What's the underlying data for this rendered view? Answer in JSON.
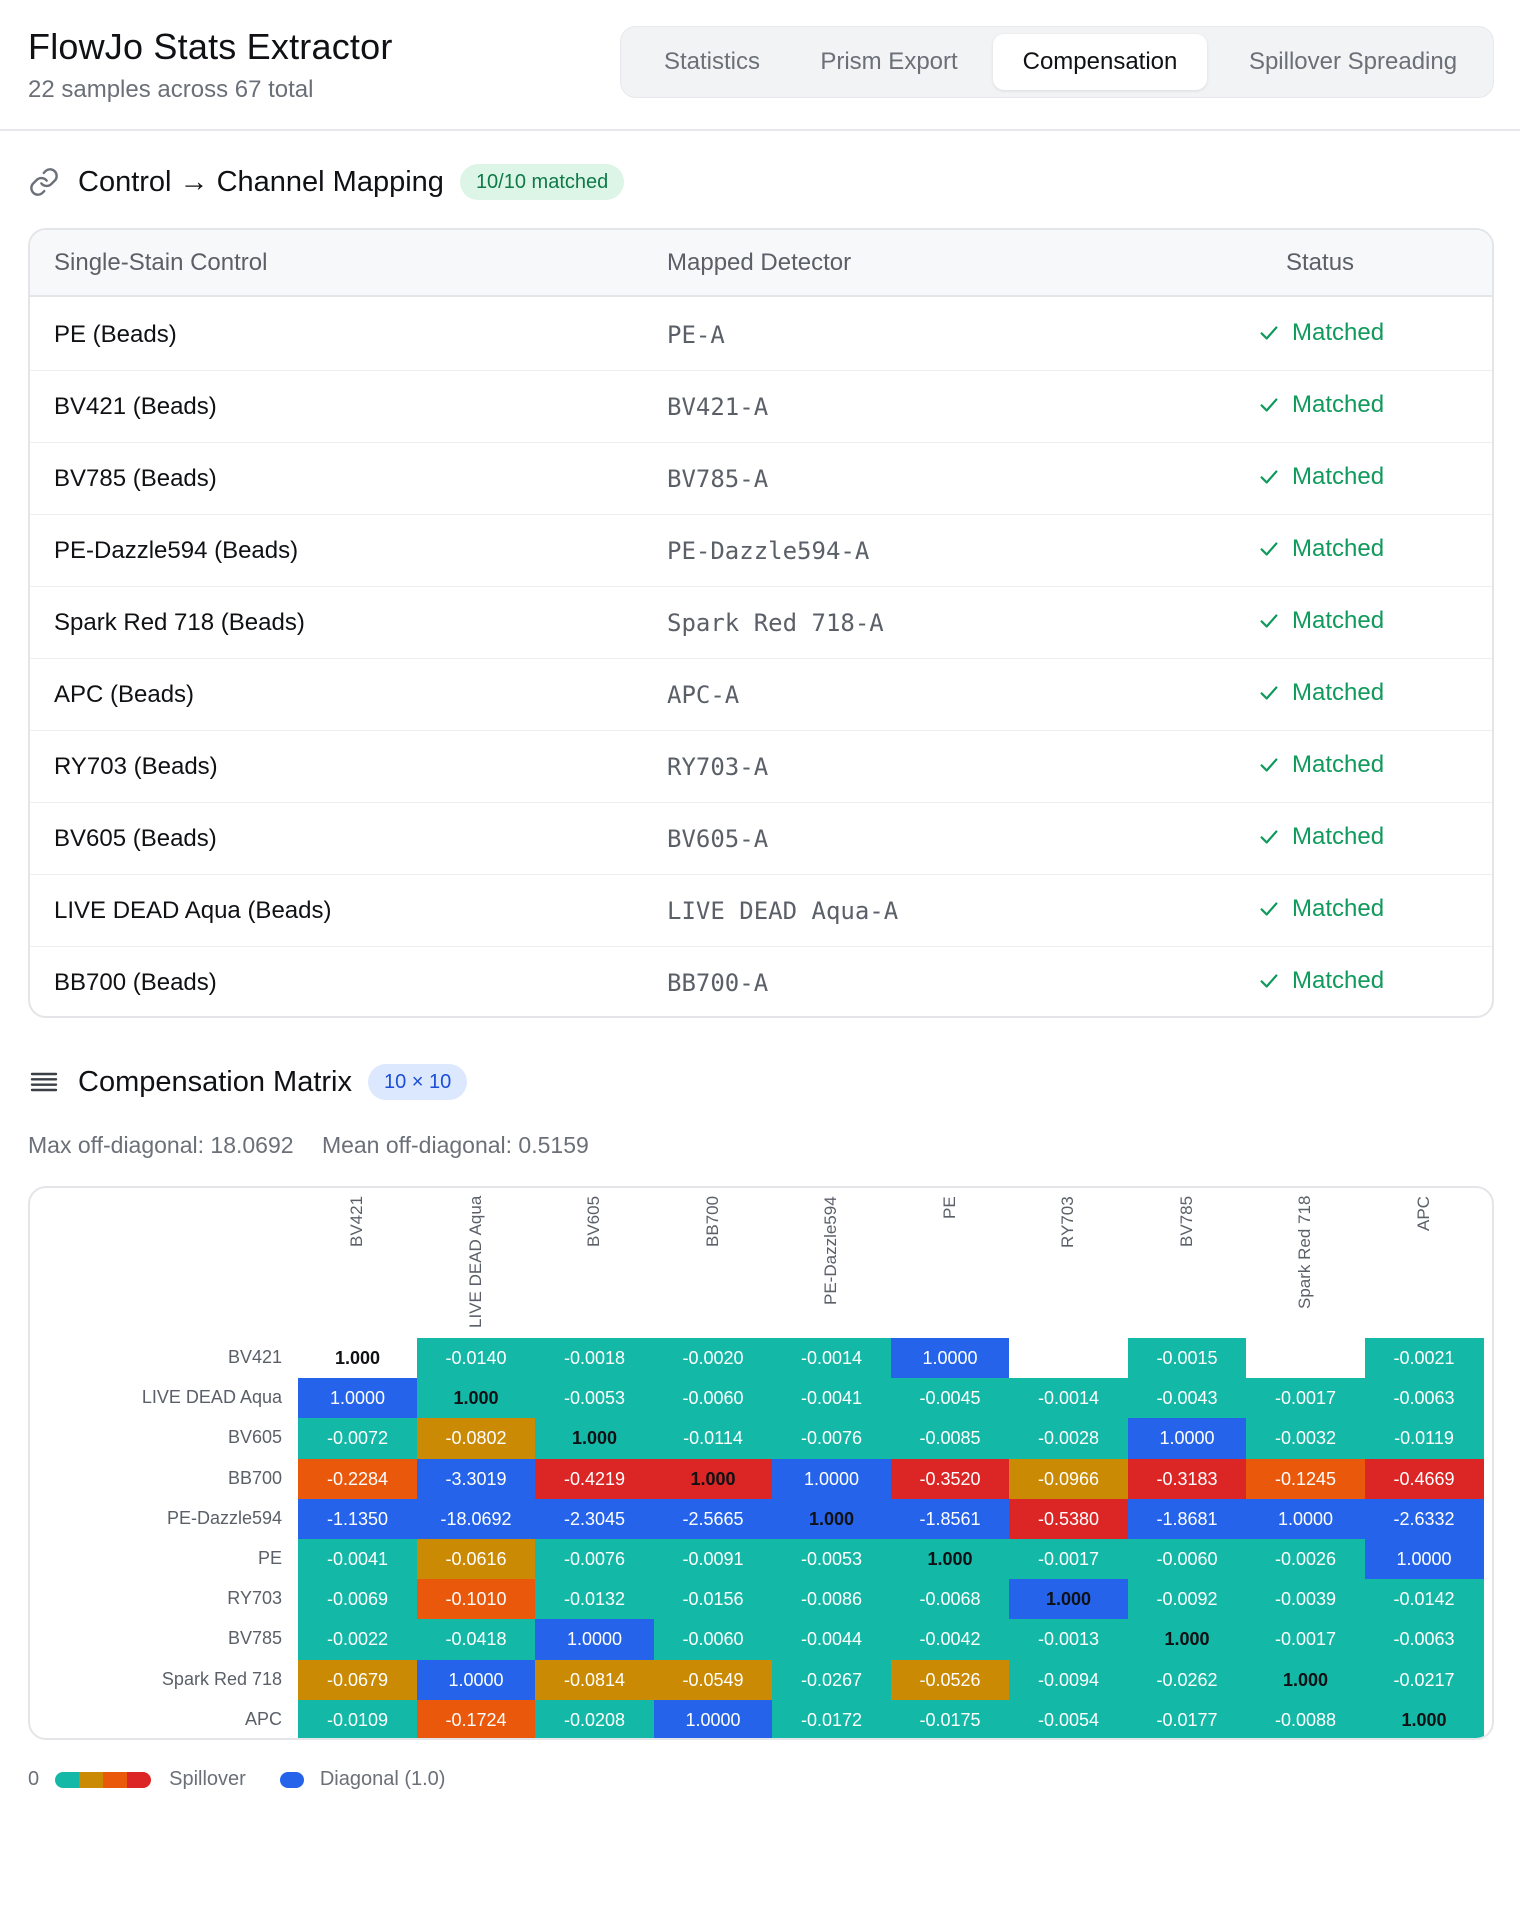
{
  "header": {
    "title": "FlowJo Stats Extractor",
    "subtitle": "22 samples across 67 total",
    "tabs": [
      {
        "label": "Statistics",
        "active": false
      },
      {
        "label": "Prism Export",
        "active": false
      },
      {
        "label": "Compensation",
        "active": true
      },
      {
        "label": "Spillover Spreading",
        "active": false
      }
    ]
  },
  "mapping": {
    "title": "Control → Channel Mapping",
    "badge": "10/10 matched",
    "columns": [
      "Single-Stain Control",
      "Mapped Detector",
      "Status"
    ],
    "rows": [
      {
        "control": "PE (Beads)",
        "detector": "PE-A",
        "status": "Matched"
      },
      {
        "control": "BV421 (Beads)",
        "detector": "BV421-A",
        "status": "Matched"
      },
      {
        "control": "BV785 (Beads)",
        "detector": "BV785-A",
        "status": "Matched"
      },
      {
        "control": "PE-Dazzle594 (Beads)",
        "detector": "PE-Dazzle594-A",
        "status": "Matched"
      },
      {
        "control": "Spark Red 718 (Beads)",
        "detector": "Spark Red 718-A",
        "status": "Matched"
      },
      {
        "control": "APC (Beads)",
        "detector": "APC-A",
        "status": "Matched"
      },
      {
        "control": "RY703 (Beads)",
        "detector": "RY703-A",
        "status": "Matched"
      },
      {
        "control": "BV605 (Beads)",
        "detector": "BV605-A",
        "status": "Matched"
      },
      {
        "control": "LIVE DEAD Aqua (Beads)",
        "detector": "LIVE DEAD Aqua-A",
        "status": "Matched"
      },
      {
        "control": "BB700 (Beads)",
        "detector": "BB700-A",
        "status": "Matched"
      }
    ]
  },
  "matrix": {
    "title": "Compensation Matrix",
    "badge": "10 × 10",
    "max_label": "Max off-diagonal: 18.0692",
    "mean_label": "Mean off-diagonal: 0.5159",
    "channels": [
      "BV421",
      "LIVE DEAD Aqua",
      "BV605",
      "BB700",
      "PE-Dazzle594",
      "PE",
      "RY703",
      "BV785",
      "Spark Red 718",
      "APC"
    ],
    "colors": {
      "t": "#14b8a6",
      "y": "#ca8a04",
      "o": "#ea580c",
      "r": "#dc2626",
      "b": "#2563eb",
      "w": "#ffffff"
    },
    "cells": [
      [
        [
          "1.000",
          "w"
        ],
        [
          "-0.0140",
          "t"
        ],
        [
          "-0.0018",
          "t"
        ],
        [
          "-0.0020",
          "t"
        ],
        [
          "-0.0014",
          "t"
        ],
        [
          "1.0000",
          "b"
        ],
        [
          "",
          "w"
        ],
        [
          "-0.0015",
          "t"
        ],
        [
          "",
          "w"
        ],
        [
          "-0.0021",
          "t"
        ]
      ],
      [
        [
          "1.0000",
          "b"
        ],
        [
          "1.000",
          "t"
        ],
        [
          "-0.0053",
          "t"
        ],
        [
          "-0.0060",
          "t"
        ],
        [
          "-0.0041",
          "t"
        ],
        [
          "-0.0045",
          "t"
        ],
        [
          "-0.0014",
          "t"
        ],
        [
          "-0.0043",
          "t"
        ],
        [
          "-0.0017",
          "t"
        ],
        [
          "-0.0063",
          "t"
        ]
      ],
      [
        [
          "-0.0072",
          "t"
        ],
        [
          "-0.0802",
          "y"
        ],
        [
          "1.000",
          "t"
        ],
        [
          "-0.0114",
          "t"
        ],
        [
          "-0.0076",
          "t"
        ],
        [
          "-0.0085",
          "t"
        ],
        [
          "-0.0028",
          "t"
        ],
        [
          "1.0000",
          "b"
        ],
        [
          "-0.0032",
          "t"
        ],
        [
          "-0.0119",
          "t"
        ]
      ],
      [
        [
          "-0.2284",
          "o"
        ],
        [
          "-3.3019",
          "b"
        ],
        [
          "-0.4219",
          "r"
        ],
        [
          "1.000",
          "r"
        ],
        [
          "1.0000",
          "b"
        ],
        [
          "-0.3520",
          "r"
        ],
        [
          "-0.0966",
          "y"
        ],
        [
          "-0.3183",
          "r"
        ],
        [
          "-0.1245",
          "o"
        ],
        [
          "-0.4669",
          "r"
        ]
      ],
      [
        [
          "-1.1350",
          "b"
        ],
        [
          "-18.0692",
          "b"
        ],
        [
          "-2.3045",
          "b"
        ],
        [
          "-2.5665",
          "b"
        ],
        [
          "1.000",
          "b"
        ],
        [
          "-1.8561",
          "b"
        ],
        [
          "-0.5380",
          "r"
        ],
        [
          "-1.8681",
          "b"
        ],
        [
          "1.0000",
          "b"
        ],
        [
          "-2.6332",
          "b"
        ]
      ],
      [
        [
          "-0.0041",
          "t"
        ],
        [
          "-0.0616",
          "y"
        ],
        [
          "-0.0076",
          "t"
        ],
        [
          "-0.0091",
          "t"
        ],
        [
          "-0.0053",
          "t"
        ],
        [
          "1.000",
          "t"
        ],
        [
          "-0.0017",
          "t"
        ],
        [
          "-0.0060",
          "t"
        ],
        [
          "-0.0026",
          "t"
        ],
        [
          "1.0000",
          "b"
        ]
      ],
      [
        [
          "-0.0069",
          "t"
        ],
        [
          "-0.1010",
          "o"
        ],
        [
          "-0.0132",
          "t"
        ],
        [
          "-0.0156",
          "t"
        ],
        [
          "-0.0086",
          "t"
        ],
        [
          "-0.0068",
          "t"
        ],
        [
          "1.000",
          "b"
        ],
        [
          "-0.0092",
          "t"
        ],
        [
          "-0.0039",
          "t"
        ],
        [
          "-0.0142",
          "t"
        ]
      ],
      [
        [
          "-0.0022",
          "t"
        ],
        [
          "-0.0418",
          "t"
        ],
        [
          "1.0000",
          "b"
        ],
        [
          "-0.0060",
          "t"
        ],
        [
          "-0.0044",
          "t"
        ],
        [
          "-0.0042",
          "t"
        ],
        [
          "-0.0013",
          "t"
        ],
        [
          "1.000",
          "t"
        ],
        [
          "-0.0017",
          "t"
        ],
        [
          "-0.0063",
          "t"
        ]
      ],
      [
        [
          "-0.0679",
          "y"
        ],
        [
          "1.0000",
          "b"
        ],
        [
          "-0.0814",
          "y"
        ],
        [
          "-0.0549",
          "y"
        ],
        [
          "-0.0267",
          "t"
        ],
        [
          "-0.0526",
          "y"
        ],
        [
          "-0.0094",
          "t"
        ],
        [
          "-0.0262",
          "t"
        ],
        [
          "1.000",
          "t"
        ],
        [
          "-0.0217",
          "t"
        ]
      ],
      [
        [
          "-0.0109",
          "t"
        ],
        [
          "-0.1724",
          "o"
        ],
        [
          "-0.0208",
          "t"
        ],
        [
          "1.0000",
          "b"
        ],
        [
          "-0.0172",
          "t"
        ],
        [
          "-0.0175",
          "t"
        ],
        [
          "-0.0054",
          "t"
        ],
        [
          "-0.0177",
          "t"
        ],
        [
          "-0.0088",
          "t"
        ],
        [
          "1.000",
          "t"
        ]
      ]
    ]
  },
  "legend": {
    "zero": "0",
    "spillover": "Spillover",
    "diagonal": "Diagonal (1.0)"
  }
}
